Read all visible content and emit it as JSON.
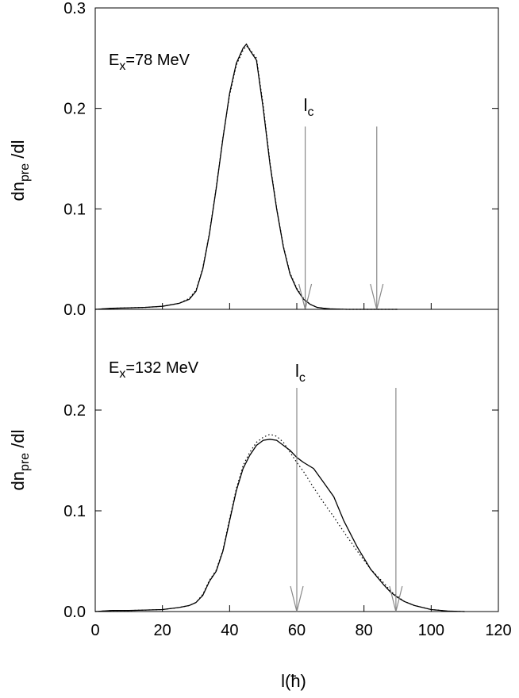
{
  "chart_data": [
    {
      "type": "line",
      "panel_label": {
        "base": "E",
        "sub": "x",
        "rest": "=78 MeV"
      },
      "lc_label": {
        "base": "l",
        "sub": "c"
      },
      "ylabel": {
        "base": "dn",
        "sub": "pre",
        "rest": " /dl"
      },
      "xlim": [
        0,
        120
      ],
      "ylim": [
        0,
        0.3
      ],
      "yticks": [
        "0.0",
        "0.1",
        "0.2",
        "0.3"
      ],
      "y_tick_values": [
        0,
        0.1,
        0.2,
        0.3
      ],
      "arrows_x": [
        62.5,
        83.8
      ],
      "arrow_top_y": 0.182,
      "series": [
        {
          "style": "solid",
          "x": [
            0,
            5,
            10,
            15,
            20,
            25,
            28,
            30,
            32,
            34,
            36,
            38,
            40,
            42,
            44,
            45,
            46,
            48,
            50,
            52,
            54,
            56,
            58,
            60,
            62,
            64,
            66,
            68,
            70,
            75,
            80,
            90
          ],
          "y": [
            0.0,
            0.001,
            0.0015,
            0.002,
            0.003,
            0.006,
            0.01,
            0.018,
            0.04,
            0.075,
            0.12,
            0.17,
            0.215,
            0.245,
            0.26,
            0.264,
            0.258,
            0.248,
            0.2,
            0.145,
            0.1,
            0.062,
            0.035,
            0.02,
            0.01,
            0.005,
            0.002,
            0.001,
            0.0005,
            0.0,
            0.0,
            0.0
          ]
        },
        {
          "style": "dotted",
          "x": [
            0,
            5,
            10,
            15,
            20,
            25,
            28,
            30,
            32,
            34,
            36,
            38,
            40,
            42,
            44,
            45,
            46,
            48,
            50,
            52,
            54,
            56,
            58,
            60,
            62,
            64,
            66,
            68,
            70,
            75,
            80,
            90
          ],
          "y": [
            0.0,
            0.001,
            0.0015,
            0.002,
            0.003,
            0.006,
            0.011,
            0.019,
            0.041,
            0.076,
            0.121,
            0.171,
            0.213,
            0.243,
            0.258,
            0.262,
            0.259,
            0.25,
            0.203,
            0.147,
            0.101,
            0.063,
            0.036,
            0.021,
            0.011,
            0.005,
            0.002,
            0.001,
            0.0005,
            0.0,
            0.0,
            0.0
          ]
        }
      ]
    },
    {
      "type": "line",
      "panel_label": {
        "base": "E",
        "sub": "x",
        "rest": "=132 MeV"
      },
      "lc_label": {
        "base": "l",
        "sub": "c"
      },
      "ylabel": {
        "base": "dn",
        "sub": "pre",
        "rest": " /dl"
      },
      "xlabel": "l(ħ)",
      "xlim": [
        0,
        120
      ],
      "ylim": [
        0,
        0.3
      ],
      "xticks": [
        "0",
        "20",
        "40",
        "60",
        "80",
        "100",
        "120"
      ],
      "x_tick_values": [
        0,
        20,
        40,
        60,
        80,
        100,
        120
      ],
      "yticks": [
        "0.0",
        "0.1",
        "0.2"
      ],
      "y_tick_values": [
        0,
        0.1,
        0.2
      ],
      "arrows_x": [
        60,
        89.5
      ],
      "arrow_top_y": 0.222,
      "series": [
        {
          "style": "solid",
          "x": [
            0,
            5,
            10,
            15,
            20,
            25,
            28,
            30,
            32,
            34,
            36,
            38,
            40,
            42,
            44,
            46,
            48,
            50,
            52,
            54,
            56,
            58,
            60,
            62,
            65,
            68,
            71,
            74,
            78,
            82,
            86,
            88,
            90,
            92,
            95,
            100,
            105,
            110
          ],
          "y": [
            0.0,
            0.001,
            0.001,
            0.0015,
            0.002,
            0.004,
            0.006,
            0.009,
            0.016,
            0.03,
            0.04,
            0.06,
            0.09,
            0.12,
            0.142,
            0.155,
            0.165,
            0.17,
            0.171,
            0.17,
            0.165,
            0.16,
            0.153,
            0.148,
            0.142,
            0.128,
            0.114,
            0.09,
            0.064,
            0.042,
            0.026,
            0.019,
            0.014,
            0.01,
            0.006,
            0.002,
            0.0005,
            0.0
          ]
        },
        {
          "style": "dotted",
          "x": [
            0,
            5,
            10,
            15,
            20,
            25,
            28,
            30,
            32,
            34,
            36,
            38,
            40,
            42,
            44,
            46,
            48,
            50,
            52,
            54,
            56,
            58,
            60,
            62,
            65,
            68,
            71,
            74,
            78,
            82,
            86,
            88,
            90,
            92,
            95,
            100,
            105,
            110
          ],
          "y": [
            0.0,
            0.001,
            0.001,
            0.0015,
            0.002,
            0.004,
            0.006,
            0.009,
            0.017,
            0.031,
            0.041,
            0.061,
            0.092,
            0.122,
            0.145,
            0.158,
            0.168,
            0.173,
            0.176,
            0.174,
            0.168,
            0.158,
            0.148,
            0.139,
            0.123,
            0.108,
            0.094,
            0.079,
            0.06,
            0.042,
            0.028,
            0.02,
            0.015,
            0.01,
            0.006,
            0.002,
            0.0005,
            0.0
          ]
        }
      ]
    }
  ]
}
